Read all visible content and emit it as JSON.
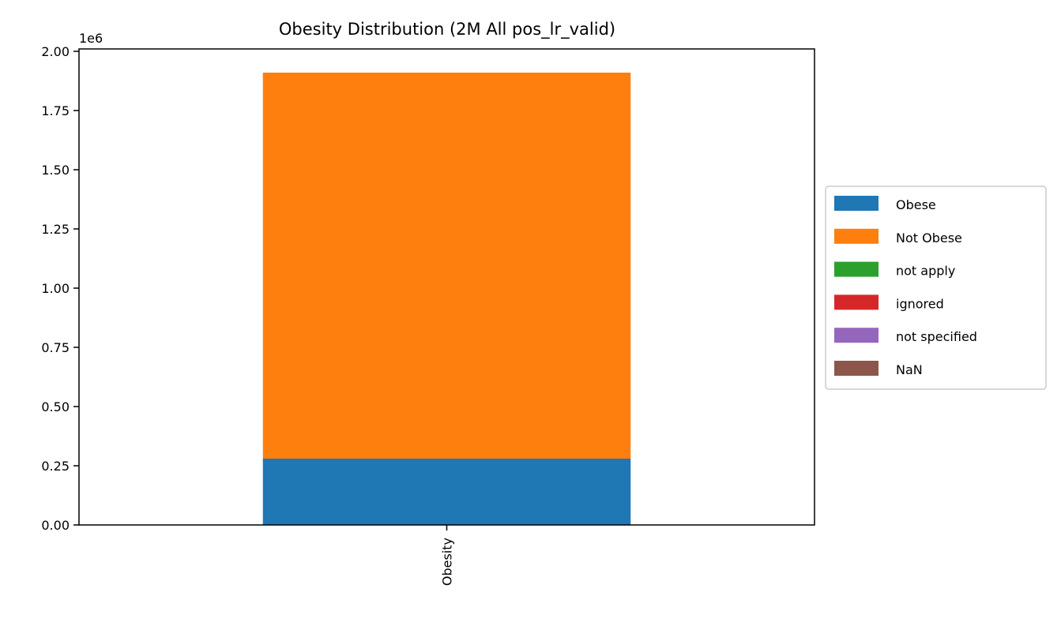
{
  "chart_data": {
    "type": "bar",
    "stacked": true,
    "title": "Obesity Distribution (2M All pos_lr_valid)",
    "xlabel": "",
    "ylabel": "",
    "categories": [
      "Obesity"
    ],
    "series": [
      {
        "name": "Obese",
        "values": [
          280000
        ],
        "color": "#1f77b4"
      },
      {
        "name": "Not Obese",
        "values": [
          1630000
        ],
        "color": "#ff7f0e"
      },
      {
        "name": "not apply",
        "values": [
          0
        ],
        "color": "#2ca02c"
      },
      {
        "name": "ignored",
        "values": [
          0
        ],
        "color": "#d62728"
      },
      {
        "name": "not specified",
        "values": [
          0
        ],
        "color": "#9467bd"
      },
      {
        "name": "NaN",
        "values": [
          0
        ],
        "color": "#8c564b"
      }
    ],
    "ylim": [
      0,
      2010000
    ],
    "y_tick_values": [
      0,
      250000,
      500000,
      750000,
      1000000,
      1250000,
      1500000,
      1750000,
      2000000
    ],
    "y_tick_labels": [
      "0.00",
      "0.25",
      "0.50",
      "0.75",
      "1.00",
      "1.25",
      "1.50",
      "1.75",
      "2.00"
    ],
    "y_offset_label": "1e6",
    "x_tick_rotation": "vertical",
    "legend_placement": "center-right-outside",
    "grid": false
  }
}
